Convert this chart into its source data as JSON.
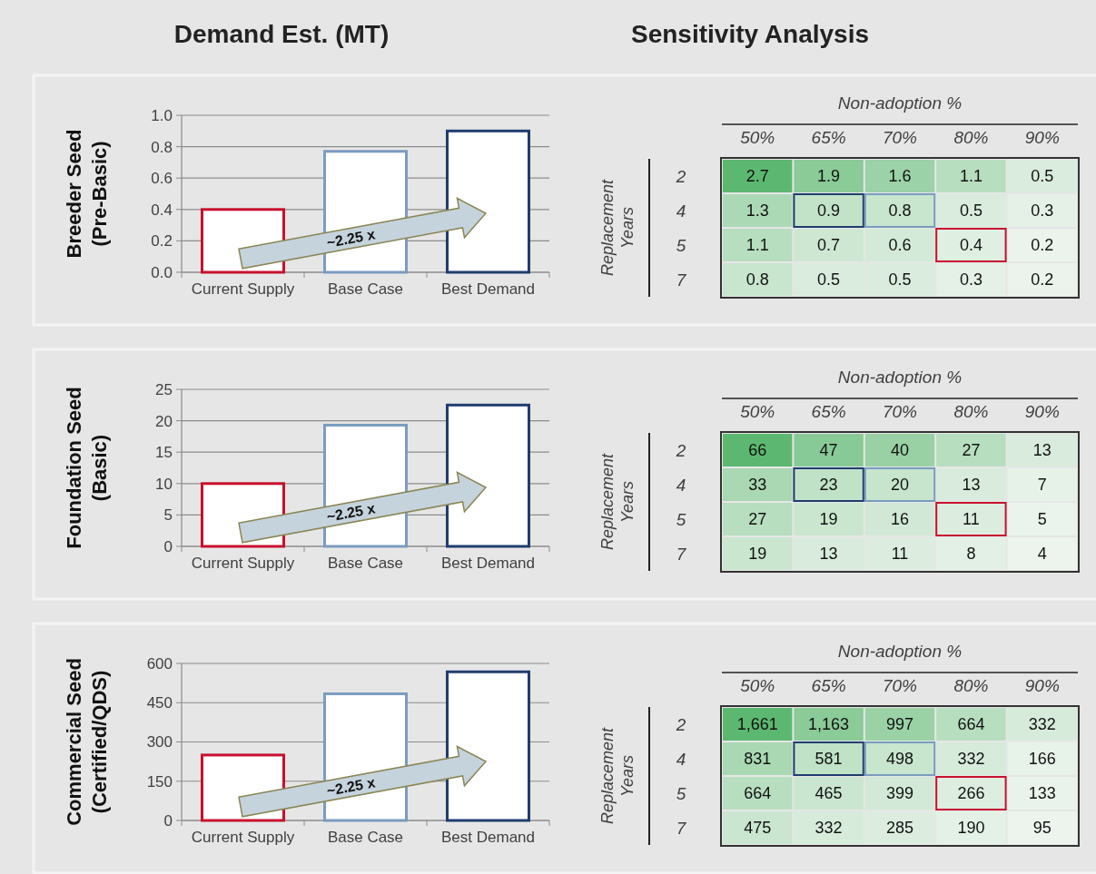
{
  "chart_data": [
    {
      "type": "bar",
      "title": "Demand Est. (MT)",
      "ylabel": "Breeder Seed\n(Pre-Basic)",
      "categories": [
        "Current Supply",
        "Base Case",
        "Best Demand"
      ],
      "values": [
        0.4,
        0.77,
        0.9
      ],
      "colors": [
        "#c8102e",
        "#7a9cbf",
        "#1f3d6e"
      ],
      "ylim": [
        0,
        1
      ],
      "yticks": [
        {
          "value": 0,
          "label": "0.0"
        },
        0.2,
        0.4,
        0.6,
        0.8,
        {
          "value": 1,
          "label": "1.0"
        }
      ],
      "grid": "y",
      "annotations": [
        "~2.25 x"
      ]
    },
    {
      "type": "heatmap",
      "title": "Sensitivity Analysis",
      "xlabel": "Non-adoption %",
      "ylabel": "Replacement Years",
      "categories": [
        "50%",
        "65%",
        "70%",
        "80%",
        "90%"
      ],
      "y_categories": [
        "2",
        "4",
        "5",
        "7"
      ],
      "data_labels": true,
      "cells": [
        [
          2.7,
          1.9,
          1.6,
          1.1,
          0.5
        ],
        [
          1.3,
          0.9,
          0.8,
          0.5,
          0.3
        ],
        [
          1.1,
          0.7,
          0.6,
          0.4,
          0.2
        ],
        [
          0.8,
          0.5,
          0.5,
          0.3,
          0.2
        ]
      ]
    },
    {
      "type": "bar",
      "ylabel": "Foundation Seed\n(Basic)",
      "categories": [
        "Current Supply",
        "Base Case",
        "Best Demand"
      ],
      "values": [
        10,
        19.3,
        22.5
      ],
      "colors": [
        "#c8102e",
        "#7a9cbf",
        "#1f3d6e"
      ],
      "ylim": [
        0,
        25
      ],
      "yticks": [
        0,
        5,
        10,
        15,
        20,
        25
      ],
      "grid": "y",
      "annotations": [
        "~2.25 x"
      ]
    },
    {
      "type": "heatmap",
      "xlabel": "Non-adoption %",
      "ylabel": "Replacement Years",
      "categories": [
        "50%",
        "65%",
        "70%",
        "80%",
        "90%"
      ],
      "y_categories": [
        "2",
        "4",
        "5",
        "7"
      ],
      "data_labels": true,
      "cells": [
        [
          66,
          47,
          40,
          27,
          13
        ],
        [
          33,
          23,
          20,
          13,
          7
        ],
        [
          27,
          19,
          16,
          11,
          5
        ],
        [
          19,
          13,
          11,
          8,
          4
        ]
      ]
    },
    {
      "type": "bar",
      "ylabel": "Commercial Seed\n(Certified/QDS)",
      "categories": [
        "Current Supply",
        "Base Case",
        "Best Demand"
      ],
      "values": [
        250,
        484,
        568
      ],
      "colors": [
        "#c8102e",
        "#7a9cbf",
        "#1f3d6e"
      ],
      "ylim": [
        0,
        600
      ],
      "yticks": [
        0,
        150,
        300,
        450,
        600
      ],
      "grid": "y",
      "annotations": [
        "~2.25 x"
      ]
    },
    {
      "type": "heatmap",
      "xlabel": "Non-adoption %",
      "ylabel": "Replacement Years",
      "categories": [
        "50%",
        "65%",
        "70%",
        "80%",
        "90%"
      ],
      "y_categories": [
        "2",
        "4",
        "5",
        "7"
      ],
      "cells": [
        [
          1661,
          1163,
          997,
          664,
          332
        ],
        [
          831,
          581,
          498,
          332,
          166
        ],
        [
          664,
          465,
          399,
          266,
          133
        ],
        [
          475,
          332,
          285,
          190,
          95
        ]
      ],
      "cell_labels": [
        [
          "1,661",
          "1,163",
          "997",
          "664",
          "332"
        ],
        [
          "831",
          "581",
          "498",
          "332",
          "166"
        ],
        [
          "664",
          "465",
          "399",
          "266",
          "133"
        ],
        [
          "475",
          "332",
          "285",
          "190",
          "95"
        ]
      ]
    }
  ]
}
